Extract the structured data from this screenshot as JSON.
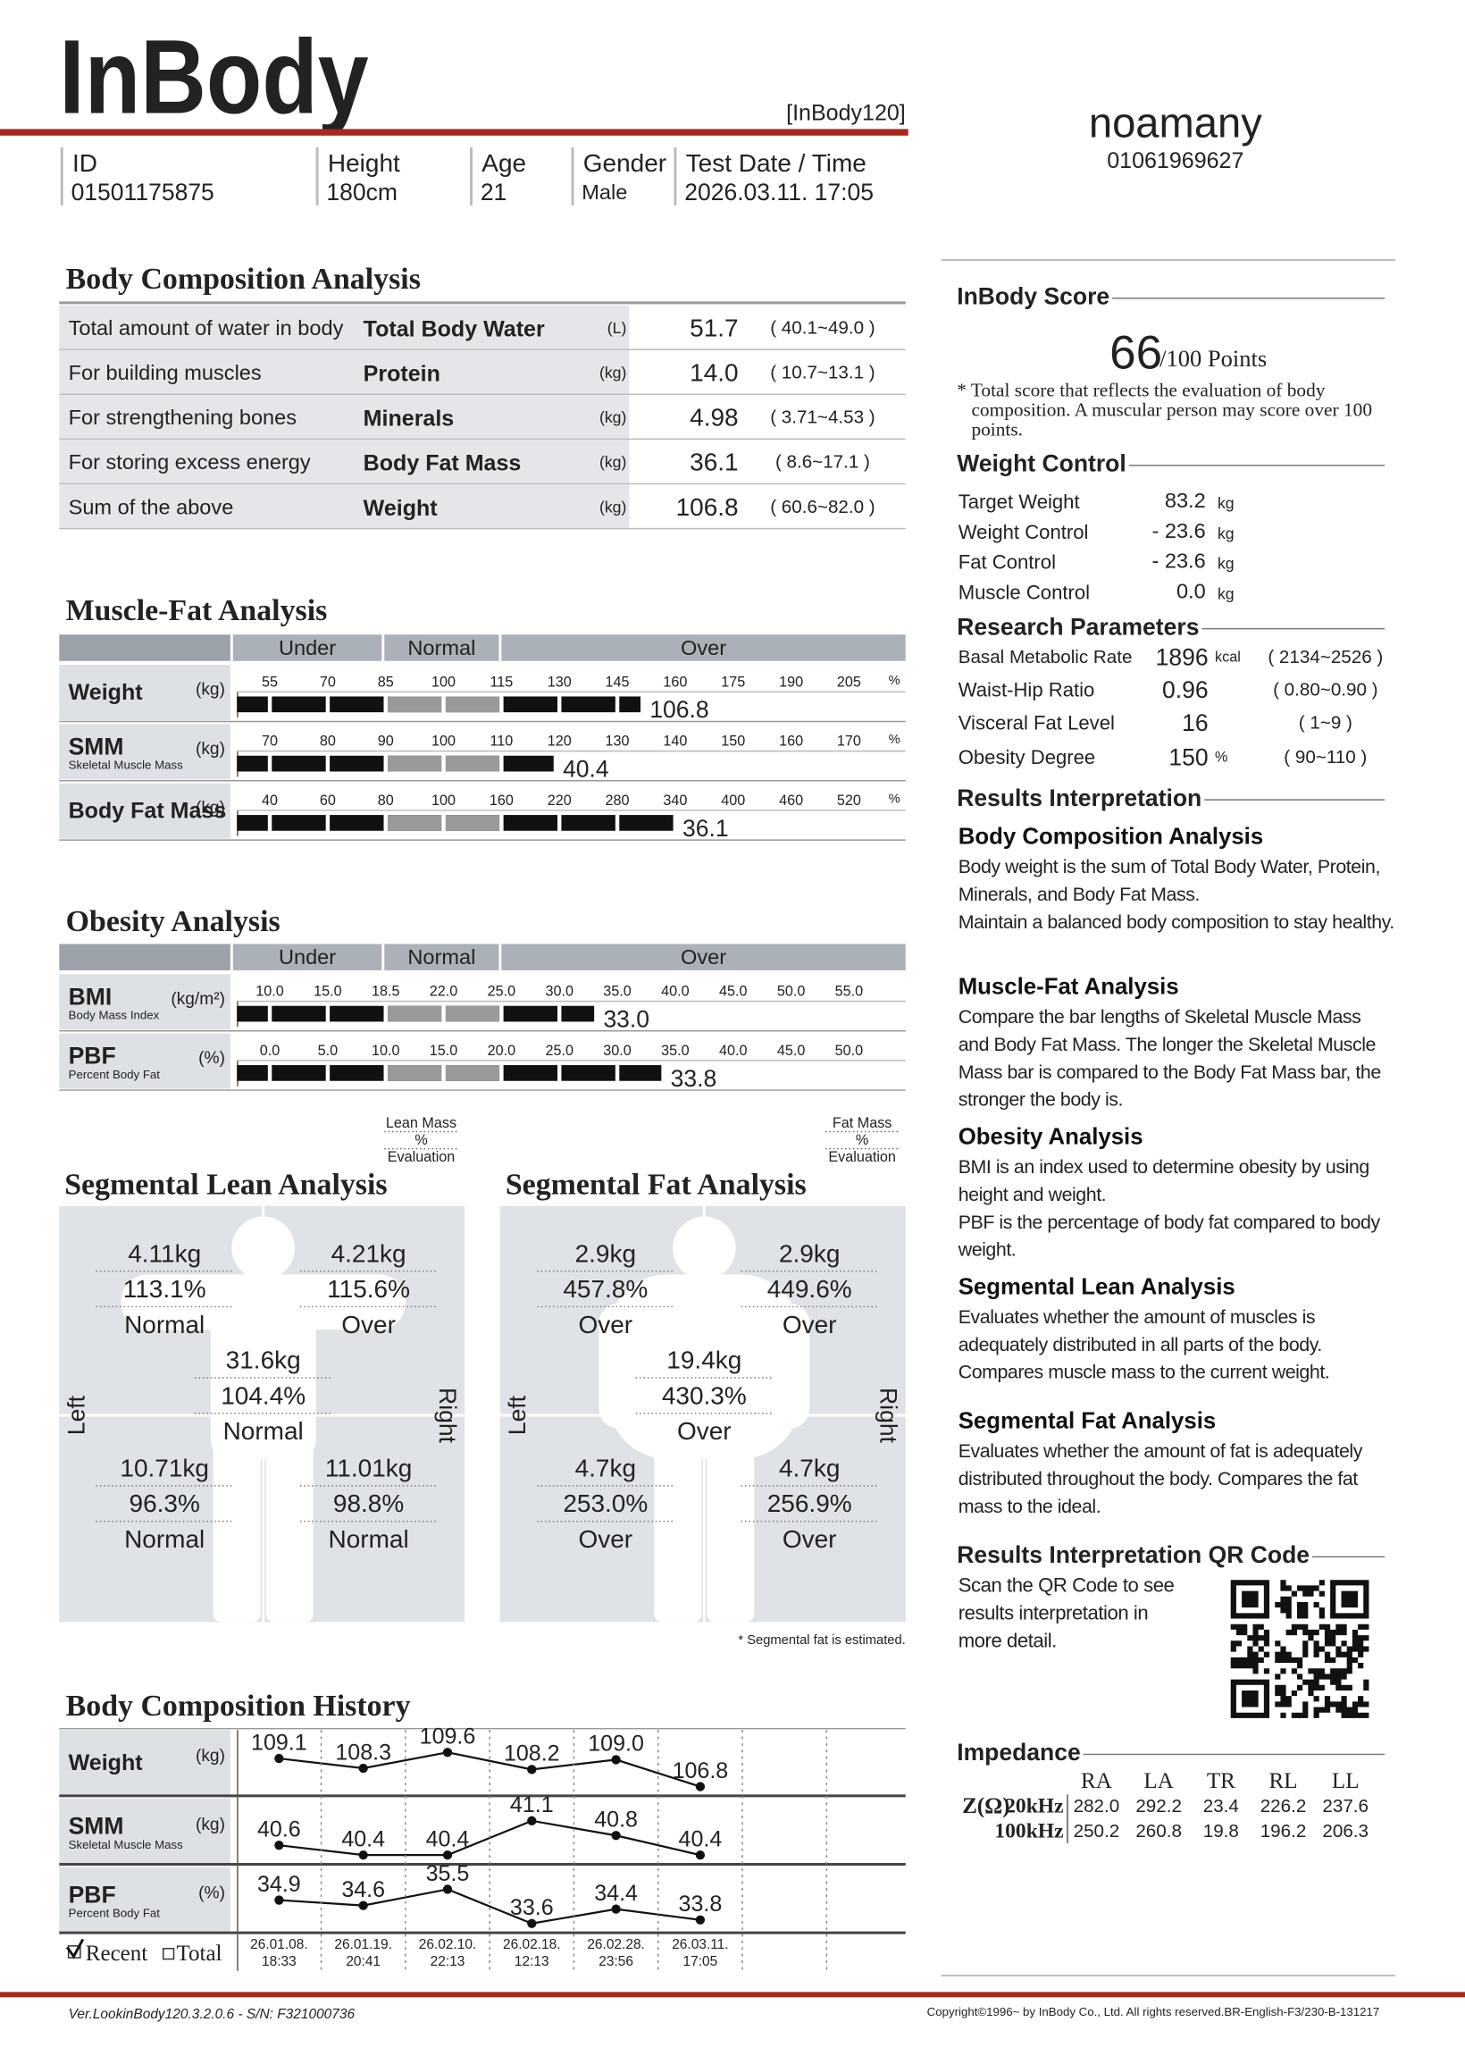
{
  "header": {
    "logo": "InBody",
    "model": "[InBody120]",
    "name": "noamany",
    "phone": "01061969627",
    "fields": [
      {
        "label": "ID",
        "value": "01501175875"
      },
      {
        "label": "Height",
        "value": "180cm"
      },
      {
        "label": "Age",
        "value": "21"
      },
      {
        "label": "Gender",
        "value": "Male"
      },
      {
        "label": "Test Date / Time",
        "value": "2026.03.11. 17:05"
      }
    ]
  },
  "body_composition": {
    "title": "Body Composition Analysis",
    "rows": [
      {
        "description": "Total amount of water in body",
        "name": "Total Body Water",
        "unit": "(L)",
        "value": "51.7",
        "range": "(  40.1~49.0  )"
      },
      {
        "description": "For building muscles",
        "name": "Protein",
        "unit": "(kg)",
        "value": "14.0",
        "range": "(  10.7~13.1  )"
      },
      {
        "description": "For strengthening bones",
        "name": "Minerals",
        "unit": "(kg)",
        "value": "4.98",
        "range": "(  3.71~4.53  )"
      },
      {
        "description": "For storing excess energy",
        "name": "Body Fat Mass",
        "unit": "(kg)",
        "value": "36.1",
        "range": "(  8.6~17.1  )"
      },
      {
        "description": "Sum of the above",
        "name": "Weight",
        "unit": "(kg)",
        "value": "106.8",
        "range": "(  60.6~82.0  )"
      }
    ]
  },
  "muscle_fat": {
    "title": "Muscle-Fat Analysis",
    "bands": [
      "Under",
      "Normal",
      "Over"
    ],
    "rows": [
      {
        "name": "Weight",
        "unit": "(kg)",
        "ticks": [
          55,
          70,
          85,
          100,
          115,
          130,
          145,
          160,
          175,
          190,
          205
        ],
        "tick_unit": "%",
        "level": 151,
        "value": 106.8
      },
      {
        "name": "SMM",
        "subtitle": "Skeletal Muscle Mass",
        "unit": "(kg)",
        "ticks": [
          70,
          80,
          90,
          100,
          110,
          120,
          130,
          140,
          150,
          160,
          170
        ],
        "tick_unit": "%",
        "level": 119,
        "value": 40.4
      },
      {
        "name": "Body Fat Mass",
        "unit": "(kg)",
        "ticks": [
          40,
          60,
          80,
          100,
          160,
          220,
          280,
          340,
          400,
          460,
          520
        ],
        "tick_unit": "%",
        "level": 338,
        "value": 36.1
      }
    ]
  },
  "obesity": {
    "title": "Obesity Analysis",
    "bands": [
      "Under",
      "Normal",
      "Over"
    ],
    "rows": [
      {
        "name": "BMI",
        "subtitle": "Body Mass Index",
        "unit": "(kg/m²)",
        "ticks": [
          {
            "value": 10,
            "label": "10.0"
          },
          {
            "value": 15,
            "label": "15.0"
          },
          {
            "value": 18.5,
            "label": "18.5"
          },
          {
            "value": 22,
            "label": "22.0"
          },
          {
            "value": 25,
            "label": "25.0"
          },
          {
            "value": 30,
            "label": "30.0"
          },
          {
            "value": 35,
            "label": "35.0"
          },
          {
            "value": 40,
            "label": "40.0"
          },
          {
            "value": 45,
            "label": "45.0"
          },
          {
            "value": 50,
            "label": "50.0"
          },
          {
            "value": 55,
            "label": "55.0"
          }
        ],
        "value": 33,
        "value_label": "33.0"
      },
      {
        "name": "PBF",
        "subtitle": "Percent Body Fat",
        "unit": "(%)",
        "ticks": [
          {
            "value": 0,
            "label": "0.0"
          },
          {
            "value": 5,
            "label": "5.0"
          },
          {
            "value": 10,
            "label": "10.0"
          },
          {
            "value": 15,
            "label": "15.0"
          },
          {
            "value": 20,
            "label": "20.0"
          },
          {
            "value": 25,
            "label": "25.0"
          },
          {
            "value": 30,
            "label": "30.0"
          },
          {
            "value": 35,
            "label": "35.0"
          },
          {
            "value": 40,
            "label": "40.0"
          },
          {
            "value": 45,
            "label": "45.0"
          },
          {
            "value": 50,
            "label": "50.0"
          }
        ],
        "value": 33.8
      }
    ]
  },
  "segmental_lean": {
    "title": "Segmental Lean Analysis",
    "legend": [
      "Lean Mass",
      "%",
      "Evaluation"
    ],
    "left": "Left",
    "right": "Right",
    "segments": [
      {
        "mass": "4.11kg",
        "percent": "113.1%",
        "evaluation": "Normal"
      },
      {
        "mass": "4.21kg",
        "percent": "115.6%",
        "evaluation": "Over"
      },
      {
        "mass": "31.6kg",
        "percent": "104.4%",
        "evaluation": "Normal"
      },
      {
        "mass": "10.71kg",
        "percent": "96.3%",
        "evaluation": "Normal"
      },
      {
        "mass": "11.01kg",
        "percent": "98.8%",
        "evaluation": "Normal"
      }
    ]
  },
  "segmental_fat": {
    "title": "Segmental Fat Analysis",
    "legend": [
      "Fat Mass",
      "%",
      "Evaluation"
    ],
    "left": "Left",
    "right": "Right",
    "note": "* Segmental fat is estimated.",
    "segments": [
      {
        "mass": "2.9kg",
        "percent": "457.8%",
        "evaluation": "Over"
      },
      {
        "mass": "2.9kg",
        "percent": "449.6%",
        "evaluation": "Over"
      },
      {
        "mass": "19.4kg",
        "percent": "430.3%",
        "evaluation": "Over"
      },
      {
        "mass": "4.7kg",
        "percent": "253.0%",
        "evaluation": "Over"
      },
      {
        "mass": "4.7kg",
        "percent": "256.9%",
        "evaluation": "Over"
      }
    ]
  },
  "history": {
    "title": "Body Composition History",
    "filters": [
      "Recent",
      "Total"
    ],
    "dates": [
      {
        "date": "26.01.08.",
        "time": "18:33"
      },
      {
        "date": "26.01.19.",
        "time": "20:41"
      },
      {
        "date": "26.02.10.",
        "time": "22:13"
      },
      {
        "date": "26.02.18.",
        "time": "12:13"
      },
      {
        "date": "26.02.28.",
        "time": "23:56"
      },
      {
        "date": "26.03.11.",
        "time": "17:05"
      }
    ],
    "rows": [
      {
        "name": "Weight",
        "unit": "(kg)",
        "values": [
          109.1,
          108.3,
          109.6,
          108.2,
          109,
          106.8
        ],
        "value_labels": [
          "109.1",
          "108.3",
          "109.6",
          "108.2",
          "109.0",
          "106.8"
        ]
      },
      {
        "name": "SMM",
        "subtitle": "Skeletal Muscle Mass",
        "unit": "(kg)",
        "values": [
          40.6,
          40.4,
          40.4,
          41.1,
          40.8,
          40.4
        ]
      },
      {
        "name": "PBF",
        "subtitle": "Percent Body Fat",
        "unit": "(%)",
        "values": [
          34.9,
          34.6,
          35.5,
          33.6,
          34.4,
          33.8
        ]
      }
    ]
  },
  "score": {
    "title": "InBody Score",
    "value": "66",
    "unit": "/100 Points",
    "note": "* Total score that reflects the evaluation of body composition. A muscular person may score over 100 points."
  },
  "weight_control": {
    "title": "Weight Control",
    "rows": [
      {
        "label": "Target Weight",
        "value": "83.2",
        "unit": "kg"
      },
      {
        "label": "Weight Control",
        "value": "- 23.6",
        "unit": "kg"
      },
      {
        "label": "Fat Control",
        "value": "- 23.6",
        "unit": "kg"
      },
      {
        "label": "Muscle Control",
        "value": "0.0",
        "unit": "kg"
      }
    ]
  },
  "research": {
    "title": "Research Parameters",
    "rows": [
      {
        "label": "Basal Metabolic Rate",
        "value": "1896",
        "unit": "kcal",
        "range": "(  2134~2526  )"
      },
      {
        "label": "Waist-Hip Ratio",
        "value": "0.96",
        "range": "(  0.80~0.90  )"
      },
      {
        "label": "Visceral Fat Level",
        "value": "16",
        "range": "(     1~9      )"
      },
      {
        "label": "Obesity Degree",
        "value": "150",
        "unit": "%",
        "range": "(   90~110   )"
      }
    ]
  },
  "interpretation": {
    "title": "Results Interpretation",
    "sections": [
      {
        "heading": "Body Composition Analysis",
        "paragraphs": [
          "Body weight is the sum of Total Body Water, Protein, Minerals, and Body Fat Mass.",
          "Maintain a balanced body composition to stay healthy."
        ]
      },
      {
        "heading": "Muscle-Fat Analysis",
        "paragraphs": [
          "Compare the bar lengths of Skeletal Muscle Mass and Body Fat Mass. The longer the Skeletal Muscle Mass bar is compared to the Body Fat Mass bar, the stronger the body is."
        ]
      },
      {
        "heading": "Obesity Analysis",
        "paragraphs": [
          "BMI is an index used to determine obesity by using height and weight.",
          "PBF is the percentage of body fat compared to body weight."
        ]
      },
      {
        "heading": "Segmental Lean Analysis",
        "paragraphs": [
          "Evaluates whether the amount of muscles is adequately distributed in all parts of the body. Compares muscle mass to the current weight."
        ]
      },
      {
        "heading": "Segmental Fat Analysis",
        "paragraphs": [
          "Evaluates whether the amount of fat is adequately distributed throughout the body. Compares the fat mass to the ideal."
        ]
      }
    ]
  },
  "qr": {
    "title": "Results Interpretation QR Code",
    "text": "Scan the QR Code to see results interpretation in more detail."
  },
  "impedance": {
    "title": "Impedance",
    "columns": [
      "RA",
      "LA",
      "TR",
      "RL",
      "LL"
    ],
    "rows": [
      {
        "label": "Z(Ω)",
        "frequency": "20kHz",
        "values": [
          "282.0",
          "292.2",
          "23.4",
          "226.2",
          "237.6"
        ]
      },
      {
        "frequency": "100kHz",
        "values": [
          "250.2",
          "260.8",
          "19.8",
          "196.2",
          "206.3"
        ]
      }
    ]
  },
  "footer": {
    "version": "Ver.LookinBody120.3.2.0.6 - S/N: F321000736",
    "copyright": "Copyright©1996~ by InBody Co., Ltd. All rights reserved.BR-English-F3/230-B-131217"
  }
}
